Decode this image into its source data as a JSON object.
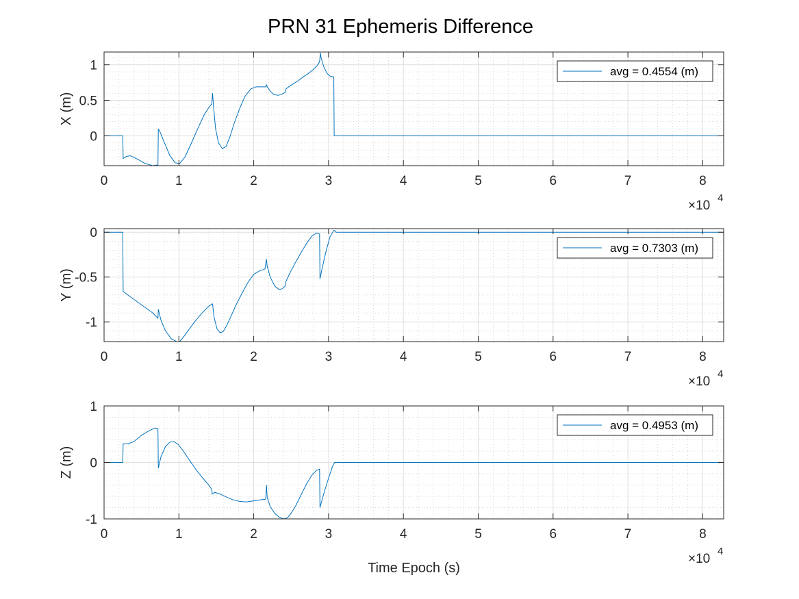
{
  "figure": {
    "title": "PRN 31 Ephemeris Difference",
    "line_color": "#0072BD",
    "exponent_label": "×10",
    "exponent_power": "4"
  },
  "chart_data": [
    {
      "type": "line",
      "ylabel": "X (m)",
      "xlabel": "",
      "xlim": [
        0,
        82800
      ],
      "ylim": [
        -0.42,
        1.18
      ],
      "xticks": [
        0,
        10000,
        20000,
        30000,
        40000,
        50000,
        60000,
        70000,
        80000
      ],
      "xtick_labels": [
        "0",
        "1",
        "2",
        "3",
        "4",
        "5",
        "6",
        "7",
        "8"
      ],
      "yticks": [
        0,
        0.5,
        1
      ],
      "ytick_labels": [
        "0",
        "0.5",
        "1"
      ],
      "grid": true,
      "legend_position": "top-right",
      "series": [
        {
          "name": "avg = 0.4554 (m)",
          "x": [
            0,
            2500,
            2550,
            3000,
            3500,
            4500,
            5500,
            6500,
            7200,
            7250,
            7500,
            8000,
            8800,
            9500,
            10100,
            10800,
            11600,
            12600,
            13400,
            14000,
            14400,
            14500,
            14600,
            14900,
            15300,
            15800,
            16300,
            16800,
            17400,
            18100,
            18800,
            19600,
            20300,
            21000,
            21600,
            21700,
            21800,
            22200,
            22700,
            23300,
            23800,
            24200,
            24300,
            24800,
            25400,
            26000,
            26600,
            27200,
            27800,
            28400,
            28800,
            28900,
            29000,
            29400,
            29800,
            30200,
            30700,
            30750,
            31000,
            40000,
            50000,
            60000,
            70000,
            82800
          ],
          "values": [
            0,
            0,
            -0.32,
            -0.29,
            -0.28,
            -0.33,
            -0.39,
            -0.42,
            -0.41,
            0.1,
            0.05,
            -0.08,
            -0.28,
            -0.38,
            -0.39,
            -0.3,
            -0.12,
            0.12,
            0.3,
            0.4,
            0.45,
            0.6,
            0.45,
            0.1,
            -0.1,
            -0.18,
            -0.15,
            -0.02,
            0.18,
            0.38,
            0.55,
            0.66,
            0.69,
            0.69,
            0.69,
            0.72,
            0.69,
            0.63,
            0.58,
            0.57,
            0.59,
            0.61,
            0.66,
            0.7,
            0.74,
            0.78,
            0.83,
            0.87,
            0.92,
            0.98,
            1.04,
            1.17,
            1.1,
            0.96,
            0.88,
            0.84,
            0.83,
            0,
            0,
            0,
            0,
            0,
            0,
            0
          ]
        }
      ]
    },
    {
      "type": "line",
      "ylabel": "Y (m)",
      "xlabel": "",
      "xlim": [
        0,
        82800
      ],
      "ylim": [
        -1.22,
        0.04
      ],
      "xticks": [
        0,
        10000,
        20000,
        30000,
        40000,
        50000,
        60000,
        70000,
        80000
      ],
      "xtick_labels": [
        "0",
        "1",
        "2",
        "3",
        "4",
        "5",
        "6",
        "7",
        "8"
      ],
      "yticks": [
        -1,
        -0.5,
        0
      ],
      "ytick_labels": [
        "-1",
        "-0.5",
        "0"
      ],
      "grid": true,
      "legend_position": "top-right",
      "series": [
        {
          "name": "avg = 0.7303 (m)",
          "x": [
            0,
            2500,
            2550,
            3500,
            4500,
            5500,
            6500,
            7200,
            7250,
            7600,
            8200,
            9000,
            9700,
            10100,
            10600,
            11300,
            12100,
            13000,
            13800,
            14400,
            14500,
            14700,
            15100,
            15500,
            15900,
            16400,
            17000,
            17700,
            18500,
            19300,
            20000,
            20800,
            21500,
            21700,
            21800,
            22200,
            22800,
            23400,
            23800,
            24200,
            24300,
            24800,
            25500,
            26300,
            27100,
            27800,
            28400,
            28800,
            28850,
            29200,
            29700,
            30200,
            30700,
            30800,
            31000,
            40000,
            50000,
            60000,
            70000,
            82800
          ],
          "values": [
            0,
            0,
            -0.66,
            -0.72,
            -0.78,
            -0.84,
            -0.9,
            -0.96,
            -0.86,
            -0.98,
            -1.1,
            -1.19,
            -1.22,
            -1.22,
            -1.17,
            -1.09,
            -1.0,
            -0.91,
            -0.84,
            -0.8,
            -0.8,
            -0.95,
            -1.08,
            -1.12,
            -1.11,
            -1.04,
            -0.93,
            -0.8,
            -0.67,
            -0.55,
            -0.47,
            -0.43,
            -0.41,
            -0.3,
            -0.38,
            -0.5,
            -0.6,
            -0.64,
            -0.63,
            -0.6,
            -0.55,
            -0.46,
            -0.35,
            -0.23,
            -0.12,
            -0.04,
            -0.01,
            -0.02,
            -0.52,
            -0.38,
            -0.2,
            -0.05,
            0.02,
            0.02,
            0.0,
            0.0,
            0.0,
            0.0,
            0.0,
            0.0
          ]
        }
      ]
    },
    {
      "type": "line",
      "ylabel": "Z (m)",
      "xlabel": "Time Epoch (s)",
      "xlim": [
        0,
        82800
      ],
      "ylim": [
        -1.0,
        1.0
      ],
      "xticks": [
        0,
        10000,
        20000,
        30000,
        40000,
        50000,
        60000,
        70000,
        80000
      ],
      "xtick_labels": [
        "0",
        "1",
        "2",
        "3",
        "4",
        "5",
        "6",
        "7",
        "8"
      ],
      "yticks": [
        -1,
        0,
        1
      ],
      "ytick_labels": [
        "-1",
        "0",
        "1"
      ],
      "grid": true,
      "legend_position": "top-right",
      "series": [
        {
          "name": "avg = 0.4953 (m)",
          "x": [
            0,
            2500,
            2550,
            3200,
            4000,
            5000,
            6000,
            6800,
            7200,
            7250,
            7600,
            8200,
            8800,
            9300,
            9900,
            10600,
            11400,
            12300,
            13200,
            14000,
            14400,
            14450,
            14800,
            15500,
            16300,
            17200,
            18100,
            19000,
            20000,
            21000,
            21600,
            21700,
            21800,
            22200,
            22800,
            23400,
            24000,
            24500,
            25000,
            25600,
            26300,
            27100,
            27800,
            28400,
            28800,
            28850,
            29300,
            29900,
            30500,
            30800,
            31000,
            40000,
            50000,
            60000,
            70000,
            82800
          ],
          "values": [
            0,
            0,
            0.33,
            0.33,
            0.37,
            0.48,
            0.56,
            0.61,
            0.6,
            -0.1,
            0.1,
            0.28,
            0.36,
            0.37,
            0.32,
            0.2,
            0.04,
            -0.13,
            -0.28,
            -0.4,
            -0.48,
            -0.56,
            -0.53,
            -0.56,
            -0.61,
            -0.66,
            -0.69,
            -0.7,
            -0.68,
            -0.66,
            -0.65,
            -0.4,
            -0.62,
            -0.78,
            -0.9,
            -0.97,
            -1.0,
            -0.98,
            -0.9,
            -0.77,
            -0.58,
            -0.37,
            -0.22,
            -0.14,
            -0.12,
            -0.8,
            -0.58,
            -0.32,
            -0.08,
            0.0,
            0.0,
            0.0,
            0.0,
            0.0,
            0.0,
            0.0
          ]
        }
      ]
    }
  ]
}
